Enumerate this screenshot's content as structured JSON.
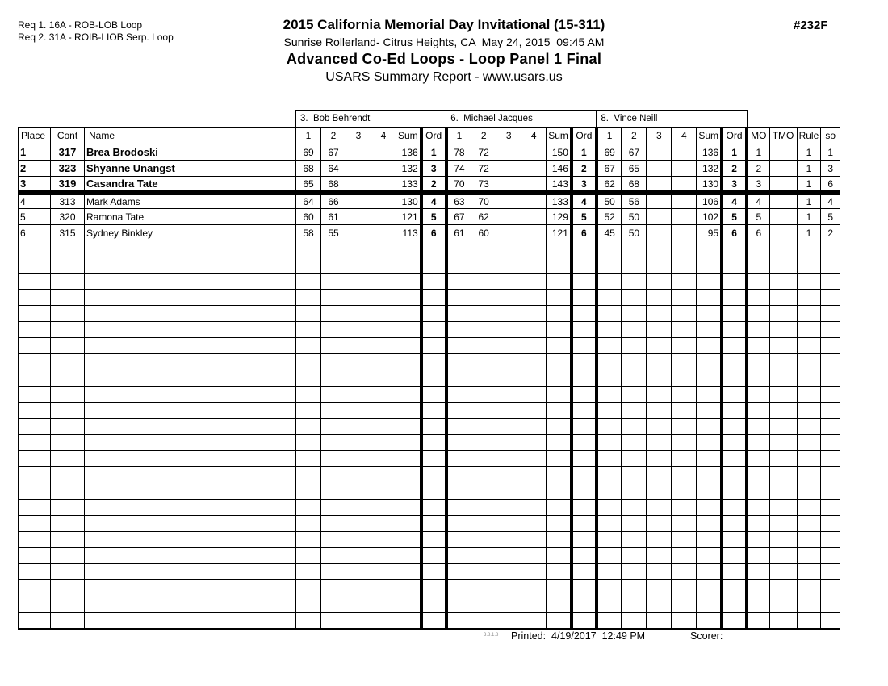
{
  "colors": {
    "ink": "#000000",
    "paper": "#ffffff"
  },
  "header": {
    "req1": "Req 1. 16A - ROB-LOB Loop",
    "req2": "Req 2. 31A - ROIB-LIOB Serp. Loop",
    "title": "2015 California Memorial Day Invitational (15-311)",
    "venue_date": "Sunrise Rollerland- Citrus Heights, CA  May 24, 2015  09:45 AM",
    "event_title": "Advanced Co-Ed Loops - Loop Panel 1 Final",
    "report_title": "USARS Summary Report - www.usars.us",
    "event_number": "#232F"
  },
  "table": {
    "judges": [
      "3.  Bob Behrendt",
      "6.  Michael Jacques",
      "8.  Vince Neill"
    ],
    "left_headers": [
      "Place",
      "Cont",
      "Name"
    ],
    "score_headers": [
      "1",
      "2",
      "3",
      "4",
      "Sum",
      "Ord"
    ],
    "right_headers": [
      "MO",
      "TMO",
      "Rule",
      "so"
    ],
    "rows": [
      {
        "place": "1",
        "cont": "317",
        "name": "Brea Brodoski",
        "bold": true,
        "judges": [
          {
            "s": [
              "69",
              "67",
              "",
              ""
            ],
            "sum": "136",
            "ord": "1"
          },
          {
            "s": [
              "78",
              "72",
              "",
              ""
            ],
            "sum": "150",
            "ord": "1"
          },
          {
            "s": [
              "69",
              "67",
              "",
              ""
            ],
            "sum": "136",
            "ord": "1"
          }
        ],
        "mo": "1",
        "tmo": "",
        "rule": "1",
        "so": "1"
      },
      {
        "place": "2",
        "cont": "323",
        "name": "Shyanne Unangst",
        "bold": true,
        "judges": [
          {
            "s": [
              "68",
              "64",
              "",
              ""
            ],
            "sum": "132",
            "ord": "3"
          },
          {
            "s": [
              "74",
              "72",
              "",
              ""
            ],
            "sum": "146",
            "ord": "2"
          },
          {
            "s": [
              "67",
              "65",
              "",
              ""
            ],
            "sum": "132",
            "ord": "2"
          }
        ],
        "mo": "2",
        "tmo": "",
        "rule": "1",
        "so": "3"
      },
      {
        "place": "3",
        "cont": "319",
        "name": "Casandra Tate",
        "bold": true,
        "judges": [
          {
            "s": [
              "65",
              "68",
              "",
              ""
            ],
            "sum": "133",
            "ord": "2"
          },
          {
            "s": [
              "70",
              "73",
              "",
              ""
            ],
            "sum": "143",
            "ord": "3"
          },
          {
            "s": [
              "62",
              "68",
              "",
              ""
            ],
            "sum": "130",
            "ord": "3"
          }
        ],
        "mo": "3",
        "tmo": "",
        "rule": "1",
        "so": "6"
      },
      {
        "place": "4",
        "cont": "313",
        "name": "Mark Adams",
        "bold": false,
        "judges": [
          {
            "s": [
              "64",
              "66",
              "",
              ""
            ],
            "sum": "130",
            "ord": "4"
          },
          {
            "s": [
              "63",
              "70",
              "",
              ""
            ],
            "sum": "133",
            "ord": "4"
          },
          {
            "s": [
              "50",
              "56",
              "",
              ""
            ],
            "sum": "106",
            "ord": "4"
          }
        ],
        "mo": "4",
        "tmo": "",
        "rule": "1",
        "so": "4"
      },
      {
        "place": "5",
        "cont": "320",
        "name": "Ramona Tate",
        "bold": false,
        "judges": [
          {
            "s": [
              "60",
              "61",
              "",
              ""
            ],
            "sum": "121",
            "ord": "5"
          },
          {
            "s": [
              "67",
              "62",
              "",
              ""
            ],
            "sum": "129",
            "ord": "5"
          },
          {
            "s": [
              "52",
              "50",
              "",
              ""
            ],
            "sum": "102",
            "ord": "5"
          }
        ],
        "mo": "5",
        "tmo": "",
        "rule": "1",
        "so": "5"
      },
      {
        "place": "6",
        "cont": "315",
        "name": "Sydney Binkley",
        "bold": false,
        "judges": [
          {
            "s": [
              "58",
              "55",
              "",
              ""
            ],
            "sum": "113",
            "ord": "6"
          },
          {
            "s": [
              "61",
              "60",
              "",
              ""
            ],
            "sum": "121",
            "ord": "6"
          },
          {
            "s": [
              "45",
              "50",
              "",
              ""
            ],
            "sum": "95",
            "ord": "6"
          }
        ],
        "mo": "6",
        "tmo": "",
        "rule": "1",
        "so": "2"
      }
    ],
    "empty_row_count": 24
  },
  "footer": {
    "version": "3.8.1.8",
    "printed": "Printed:  4/19/2017  12:49 PM",
    "scorer": "Scorer:"
  }
}
